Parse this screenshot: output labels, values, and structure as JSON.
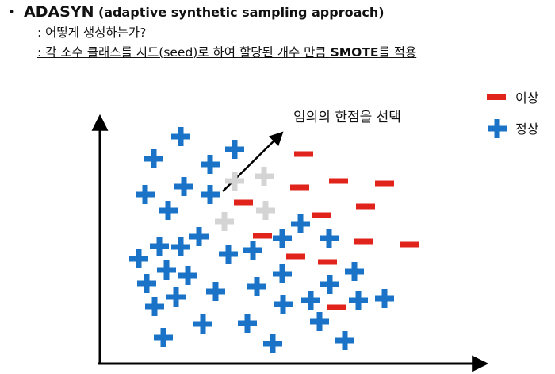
{
  "header": {
    "bullet": "•",
    "title_strong": "ADASYN",
    "title_rest": "(adaptive synthetic sampling approach)",
    "line2": ": 어떻게 생성하는가?",
    "line3_prefix": ": 각 소수 클래스를 시드(seed)로 하여 할당된 개수 만큼 ",
    "line3_bold": "SMOTE",
    "line3_suffix": "를 적용"
  },
  "legend": {
    "minority_label": "이상",
    "majority_label": "정상"
  },
  "annotation": "임의의 한점을 선택",
  "colors": {
    "minority": "#e0231b",
    "majority": "#1a73c6",
    "synthetic": "#d4d4d4",
    "axis": "#000000"
  },
  "icons": {
    "minority": "dash-marker",
    "majority": "plus-marker",
    "synthetic": "plus-marker-gray"
  },
  "points": {
    "majority": [
      [
        228,
        172
      ],
      [
        194,
        200
      ],
      [
        265,
        207
      ],
      [
        296,
        188
      ],
      [
        183,
        245
      ],
      [
        212,
        265
      ],
      [
        232,
        235
      ],
      [
        265,
        245
      ],
      [
        379,
        282
      ],
      [
        415,
        300
      ],
      [
        356,
        300
      ],
      [
        251,
        298
      ],
      [
        228,
        311
      ],
      [
        201,
        310
      ],
      [
        319,
        315
      ],
      [
        288,
        320
      ],
      [
        175,
        326
      ],
      [
        210,
        340
      ],
      [
        237,
        347
      ],
      [
        185,
        357
      ],
      [
        356,
        345
      ],
      [
        447,
        342
      ],
      [
        416,
        358
      ],
      [
        324,
        361
      ],
      [
        272,
        367
      ],
      [
        222,
        374
      ],
      [
        195,
        386
      ],
      [
        357,
        383
      ],
      [
        392,
        378
      ],
      [
        452,
        378
      ],
      [
        485,
        376
      ],
      [
        256,
        408
      ],
      [
        312,
        407
      ],
      [
        403,
        405
      ],
      [
        206,
        425
      ],
      [
        344,
        433
      ],
      [
        435,
        429
      ]
    ],
    "minority": [
      [
        383,
        194
      ],
      [
        427,
        228
      ],
      [
        378,
        236
      ],
      [
        485,
        231
      ],
      [
        307,
        255
      ],
      [
        461,
        260
      ],
      [
        405,
        271
      ],
      [
        331,
        297
      ],
      [
        458,
        304
      ],
      [
        516,
        308
      ],
      [
        373,
        323
      ],
      [
        413,
        330
      ],
      [
        425,
        387
      ]
    ],
    "synthetic": [
      [
        296,
        228
      ],
      [
        333,
        222
      ],
      [
        335,
        265
      ],
      [
        283,
        279
      ]
    ]
  }
}
